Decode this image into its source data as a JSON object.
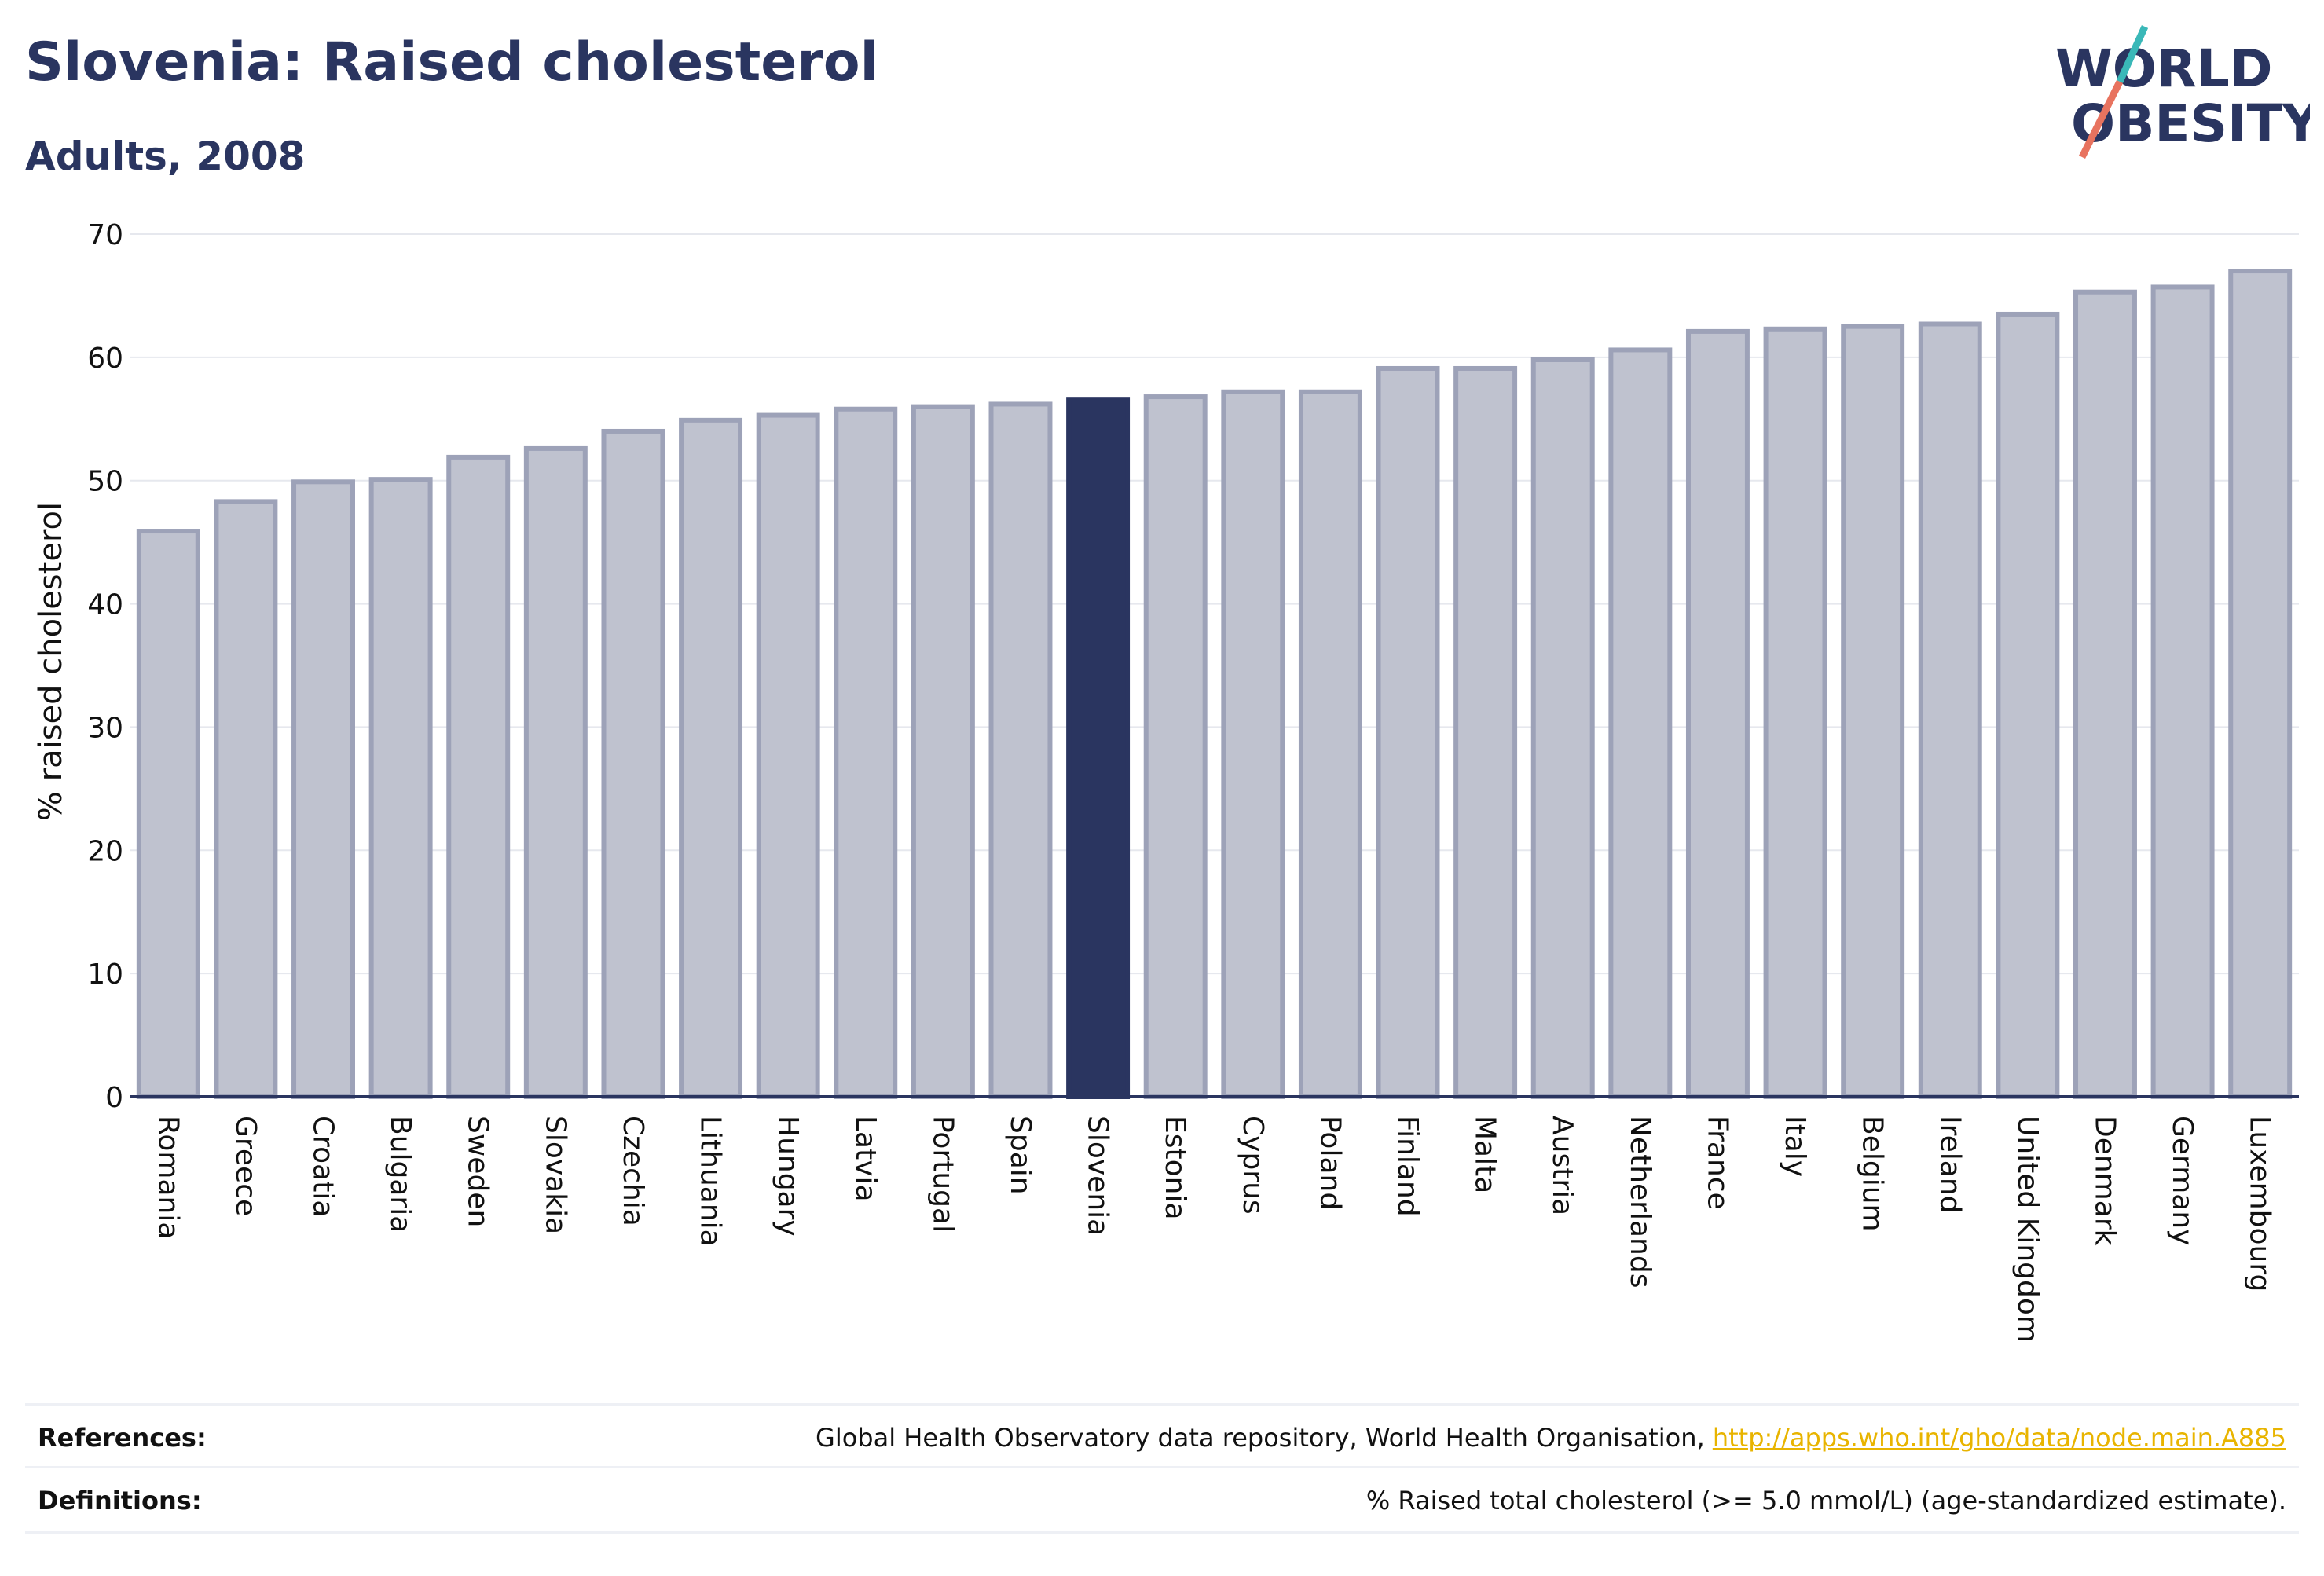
{
  "header": {
    "title": "Slovenia: Raised cholesterol",
    "subtitle": "Adults, 2008",
    "logo_line1": "WORLD",
    "logo_line2": "OBESITY"
  },
  "chart_data": {
    "type": "bar",
    "title": "Slovenia: Raised cholesterol",
    "subtitle": "Adults, 2008",
    "ylabel": "% raised cholesterol",
    "xlabel": "",
    "ylim": [
      0,
      70
    ],
    "yticks": [
      0,
      10,
      20,
      30,
      40,
      50,
      60,
      70
    ],
    "grid": true,
    "highlight": "Slovenia",
    "categories": [
      "Romania",
      "Greece",
      "Croatia",
      "Bulgaria",
      "Sweden",
      "Slovakia",
      "Czechia",
      "Lithuania",
      "Hungary",
      "Latvia",
      "Portugal",
      "Spain",
      "Slovenia",
      "Estonia",
      "Cyprus",
      "Poland",
      "Finland",
      "Malta",
      "Austria",
      "Netherlands",
      "France",
      "Italy",
      "Belgium",
      "Ireland",
      "United Kingdom",
      "Denmark",
      "Germany",
      "Luxembourg"
    ],
    "values": [
      45.9,
      48.3,
      49.9,
      50.1,
      51.9,
      52.6,
      54.0,
      54.9,
      55.3,
      55.8,
      56.0,
      56.2,
      56.6,
      56.8,
      57.2,
      57.2,
      59.1,
      59.1,
      59.8,
      60.6,
      62.1,
      62.3,
      62.5,
      62.7,
      63.5,
      65.3,
      65.7,
      67.0
    ]
  },
  "colors": {
    "highlight": "#2a3560",
    "bar_fill": "#bfc2cf",
    "bar_stroke": "#9da2b8",
    "grid": "#e6e8ee",
    "text": "#2a3560",
    "link": "#e8b400",
    "logo_teal": "#3ab8b8",
    "logo_coral": "#e8735f"
  },
  "footer": {
    "references_label": "References:",
    "references_text": "Global Health Observatory data repository, World Health Organisation, ",
    "references_link": "http://apps.who.int/gho/data/node.main.A885",
    "definitions_label": "Definitions:",
    "definitions_text": "% Raised total cholesterol (>= 5.0 mmol/L) (age-standardized estimate)."
  }
}
